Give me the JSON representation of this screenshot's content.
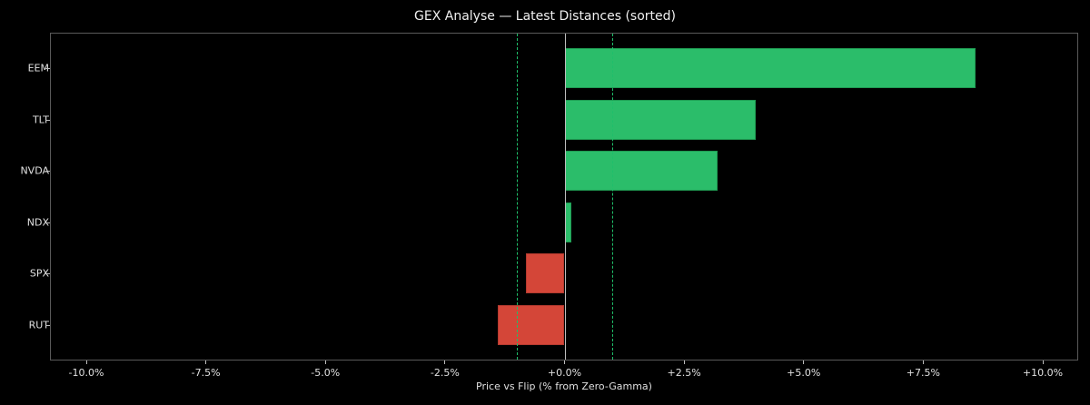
{
  "chart_data": {
    "type": "bar",
    "orientation": "horizontal",
    "title": "GEX Analyse — Latest Distances (sorted)",
    "xlabel": "Price vs Flip (% from Zero-Gamma)",
    "ylabel": "",
    "xlim": [
      -10.5,
      11.0
    ],
    "categories": [
      "EEM",
      "TLT",
      "NVDA",
      "NDX",
      "SPX",
      "RUT"
    ],
    "values": [
      8.6,
      4.0,
      3.2,
      0.15,
      -0.8,
      -1.4
    ],
    "x_ticks": [
      "-10.0%",
      "-7.5%",
      "-5.0%",
      "-2.5%",
      "+0.0%",
      "+2.5%",
      "+5.0%",
      "+7.5%",
      "+10.0%"
    ],
    "x_tick_values": [
      -10,
      -7.5,
      -5,
      -2.5,
      0,
      2.5,
      5,
      7.5,
      10
    ],
    "reference_lines": [
      {
        "x": -1.0,
        "style": "dashed",
        "color": "#1fbf6a"
      },
      {
        "x": 0.0,
        "style": "solid",
        "color": "#bdbdbd"
      },
      {
        "x": 1.0,
        "style": "dashed",
        "color": "#1fbf6a"
      }
    ],
    "colors": {
      "positive": "#2bbd6a",
      "negative": "#d44638",
      "background": "#000000"
    },
    "grid": false,
    "legend": null
  }
}
